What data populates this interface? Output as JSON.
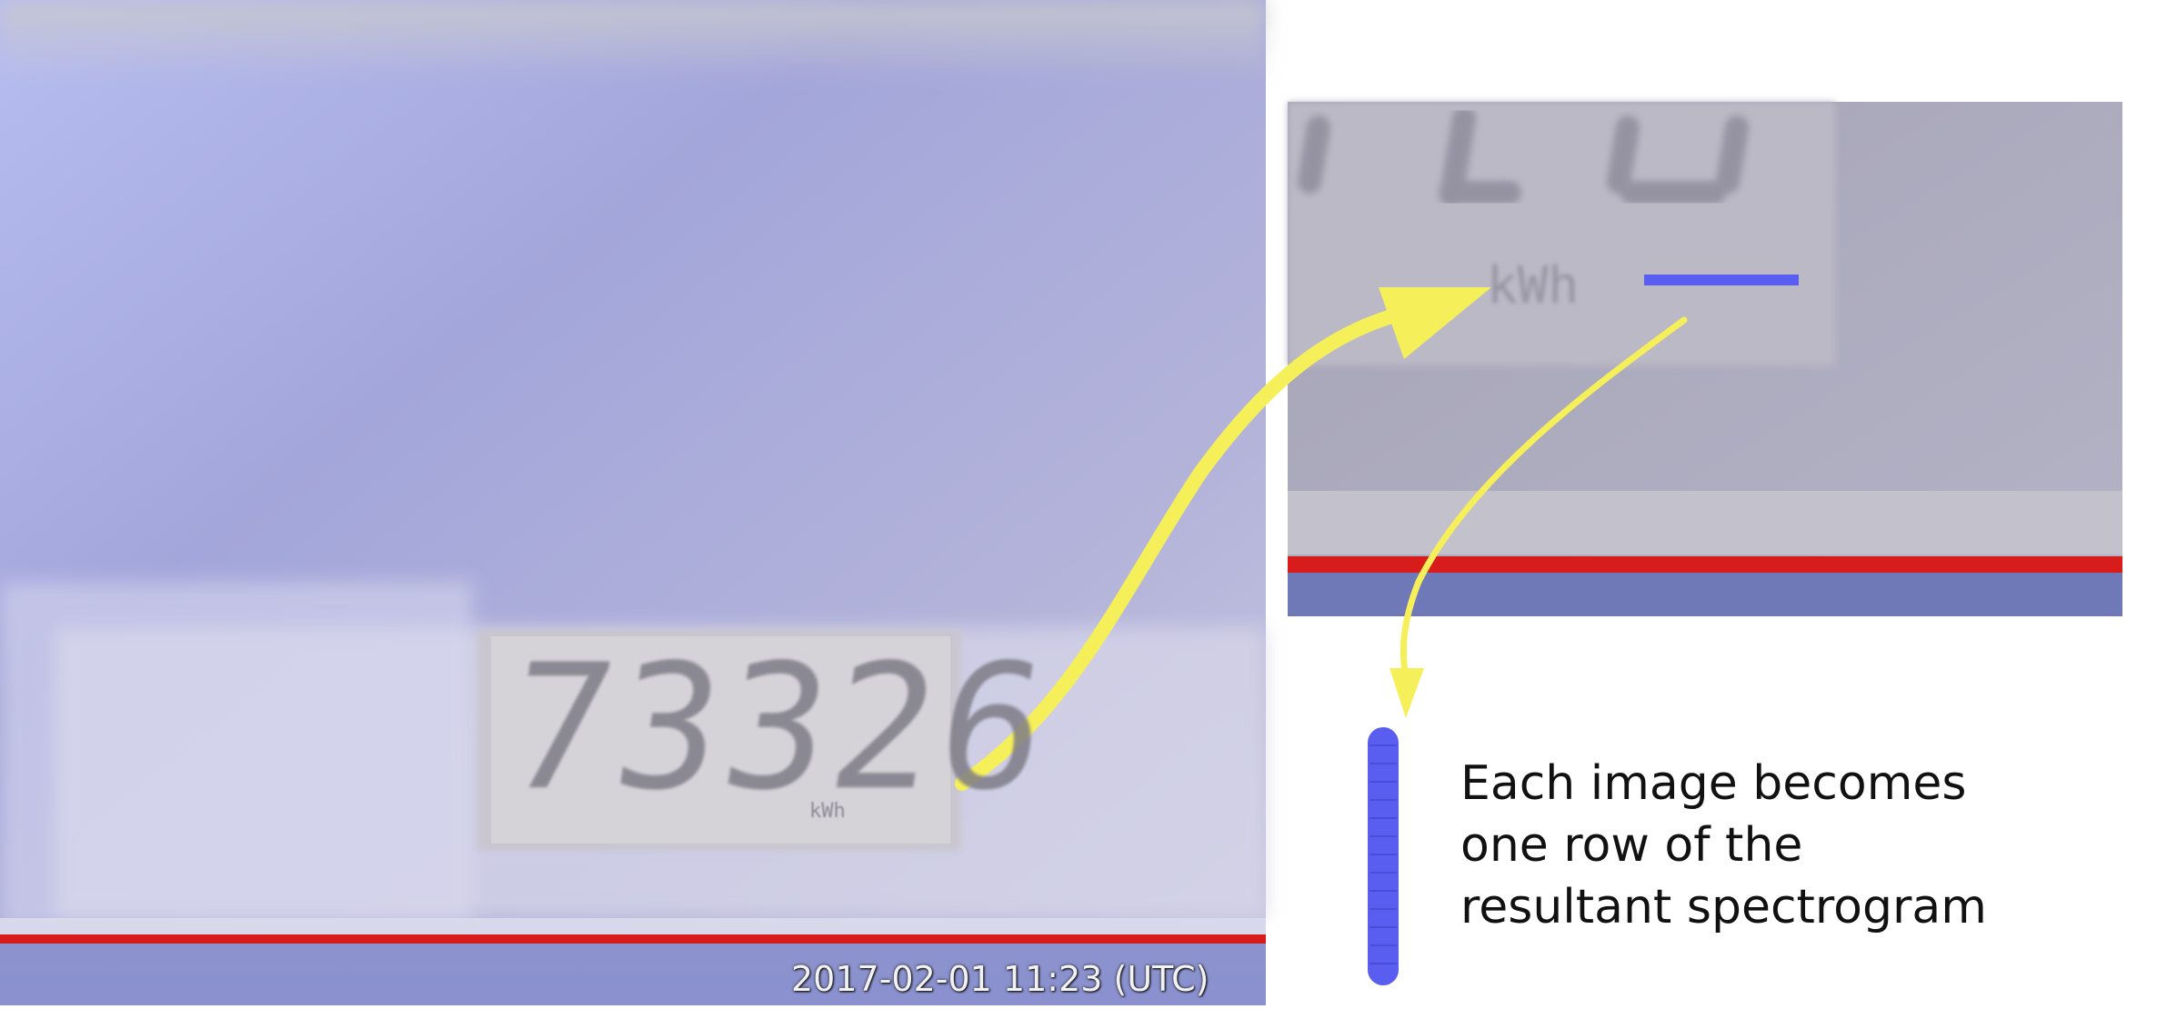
{
  "left_photo": {
    "timestamp": "2017-02-01 11:23 (UTC)",
    "meter_reading": "73326",
    "meter_unit": "kWh"
  },
  "zoom_inset": {
    "unit_label": "kWh"
  },
  "caption": {
    "line1": "Each image becomes",
    "line2": "one row of the",
    "line3": "resultant spectrogram"
  },
  "colors": {
    "arrow": "#f5f05a",
    "scan_line": "#5a5ef0",
    "baseline": "#d81c1c",
    "photo_tint": "#a9abdf"
  }
}
